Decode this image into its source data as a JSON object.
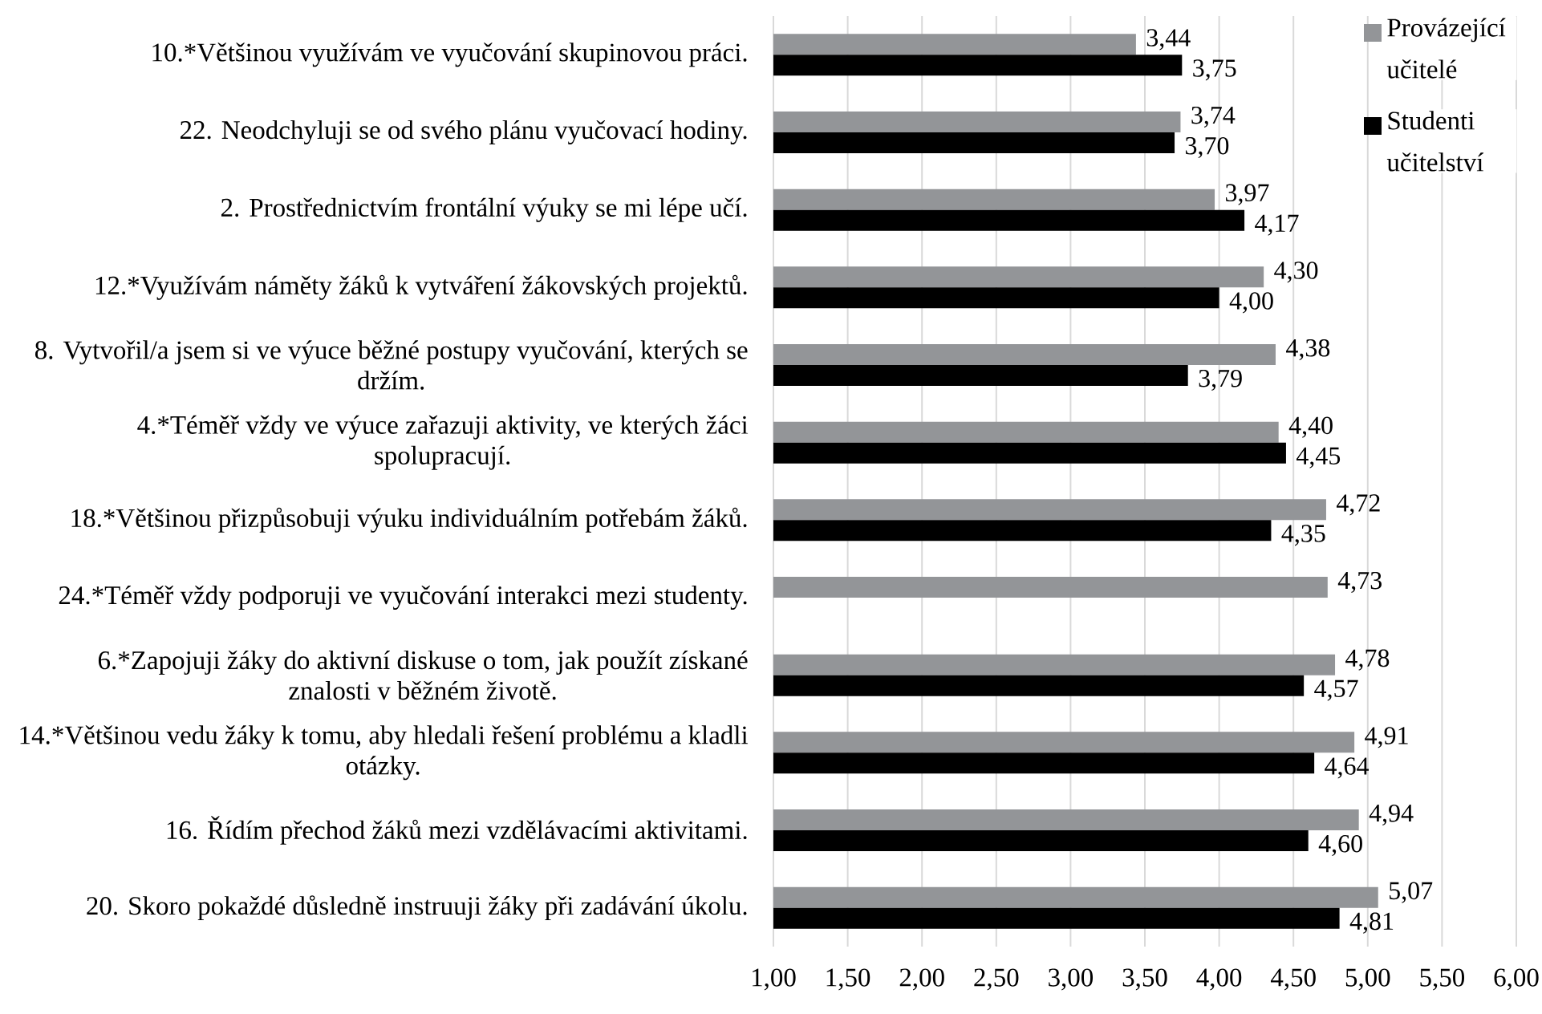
{
  "chart_data": {
    "type": "bar",
    "orientation": "horizontal",
    "categories": [
      "10.*Většinou využívám ve vyučování skupinovou práci.",
      "22. Neodchyluji se od svého plánu vyučovací hodiny.",
      "2. Prostřednictvím  frontální výuky se mi lépe učí.",
      "12.*Využívám náměty žáků k vytváření žákovských projektů.",
      "8. Vytvořil/a jsem si ve výuce běžné postupy vyučování, kterých se držím.",
      "4.*Téměř vždy ve výuce zařazuji aktivity, ve kterých žáci spolupracují.",
      "18.*Většinou přizpůsobuji výuku individuálním potřebám žáků.",
      "24.*Téměř vždy podporuji ve vyučování interakci mezi studenty.",
      "6.*Zapojuji žáky do aktivní diskuse o tom, jak použít získané znalosti v běžném životě.",
      "14.*Většinou vedu žáky k tomu, aby hledali řešení problému a kladli otázky.",
      "16. Řídím přechod žáků mezi vzdělávacími aktivitami.",
      "20. Skoro pokaždé důsledně instruuji žáky při zadávání úkolu."
    ],
    "series": [
      {
        "name": "Provázející učitelé",
        "color": "#939598",
        "values": [
          3.44,
          3.74,
          3.97,
          4.3,
          4.38,
          4.4,
          4.72,
          4.73,
          4.78,
          4.91,
          4.94,
          5.07
        ],
        "value_labels": [
          "3,44",
          "3,74",
          "3,97",
          "4,30",
          "4,38",
          "4,40",
          "4,72",
          "4,73",
          "4,78",
          "4,91",
          "4,94",
          "5,07"
        ]
      },
      {
        "name": "Studenti učitelství",
        "color": "#000000",
        "values": [
          3.75,
          3.7,
          4.17,
          4.0,
          3.79,
          4.45,
          4.35,
          null,
          4.57,
          4.64,
          4.6,
          4.81
        ],
        "value_labels": [
          "3,75",
          "3,70",
          "4,17",
          "4,00",
          "3,79",
          "4,45",
          "4,35",
          null,
          "4,57",
          "4,64",
          "4,60",
          "4,81"
        ]
      }
    ],
    "xlim": [
      1,
      6
    ],
    "xticks": [
      {
        "value": 1,
        "label": "1,00"
      },
      {
        "value": 1.5,
        "label": "1,50"
      },
      {
        "value": 2,
        "label": "2,00"
      },
      {
        "value": 2.5,
        "label": "2,50"
      },
      {
        "value": 3,
        "label": "3,00"
      },
      {
        "value": 3.5,
        "label": "3,50"
      },
      {
        "value": 4,
        "label": "4,00"
      },
      {
        "value": 4.5,
        "label": "4,50"
      },
      {
        "value": 5,
        "label": "5,00"
      },
      {
        "value": 5.5,
        "label": "5,50"
      },
      {
        "value": 6,
        "label": "6,00"
      }
    ],
    "grid": "x",
    "legend": "top right"
  }
}
